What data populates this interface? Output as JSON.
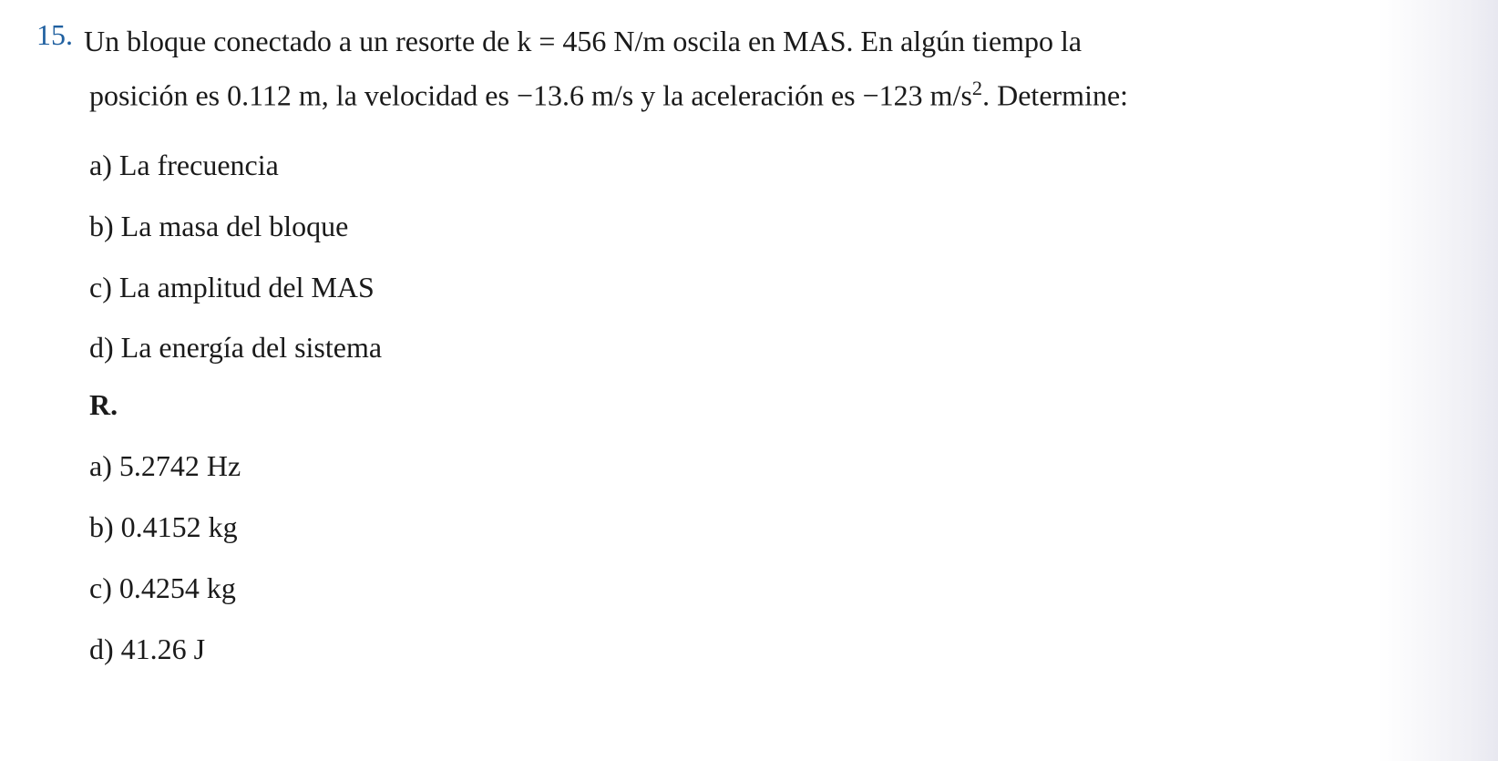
{
  "problem": {
    "number": "15.",
    "number_color": "#2060a0",
    "text_line1": "Un bloque conectado a un resorte de k = 456 N/m oscila en MAS. En algún tiempo la",
    "text_line2_prefix": "posición es 0.112 m, la velocidad es −13.6 m/s y la aceleración es −123 m/s",
    "text_line2_suffix": ". Determine:",
    "superscript": "2"
  },
  "questions": [
    {
      "label": "a)",
      "text": "La frecuencia"
    },
    {
      "label": "b)",
      "text": "La masa del bloque"
    },
    {
      "label": "c)",
      "text": "La amplitud del MAS"
    },
    {
      "label": "d)",
      "text": "La energía del sistema"
    }
  ],
  "answers_header": "R.",
  "answers": [
    {
      "label": "a)",
      "text": "5.2742 Hz"
    },
    {
      "label": "b)",
      "text": "0.4152 kg"
    },
    {
      "label": "c)",
      "text": "0.4254 kg"
    },
    {
      "label": "d)",
      "text": "41.26 J"
    }
  ],
  "styling": {
    "body_width": 1644,
    "body_height": 835,
    "background_color": "#ffffff",
    "text_color": "#1a1a1a",
    "font_family": "Times New Roman",
    "base_font_size": 32,
    "number_color": "#2060a0",
    "left_indent": 58,
    "item_spacing": 22
  }
}
